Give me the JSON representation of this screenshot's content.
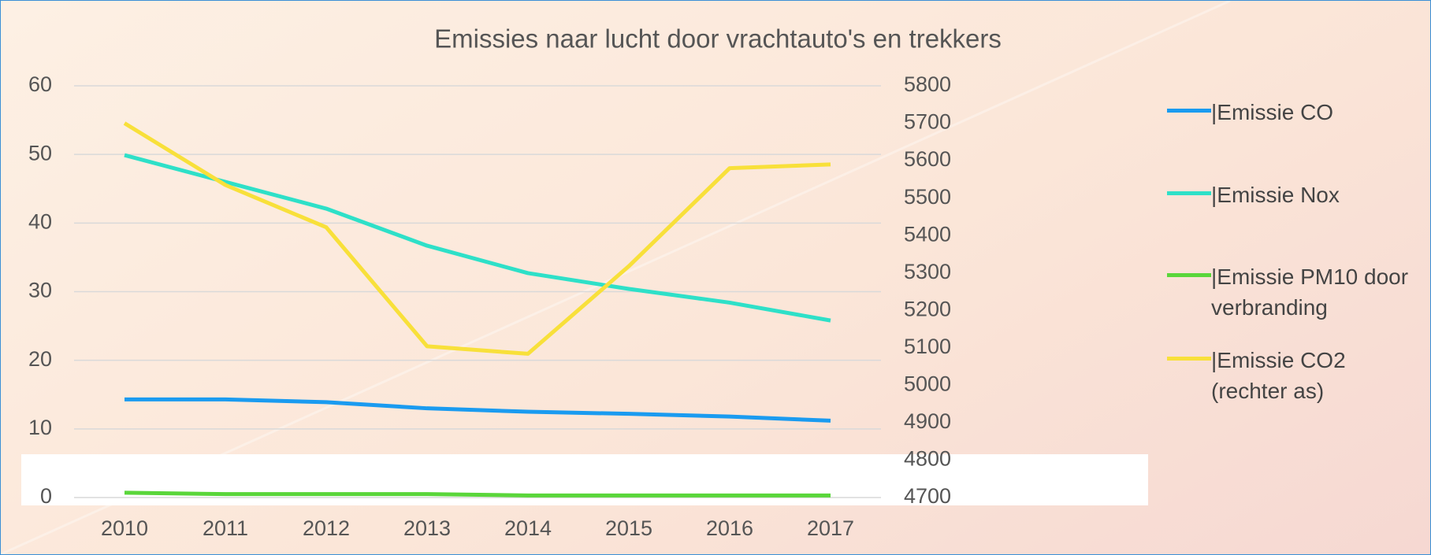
{
  "chart_data": {
    "type": "line",
    "title": "Emissies naar lucht door vrachtauto's en trekkers",
    "categories": [
      "2010",
      "2011",
      "2012",
      "2013",
      "2014",
      "2015",
      "2016",
      "2017"
    ],
    "series": [
      {
        "name": "|Emissie CO",
        "color": "#1a9bf0",
        "values": [
          14.3,
          14.3,
          13.9,
          13.0,
          12.5,
          12.2,
          11.8,
          11.2
        ]
      },
      {
        "name": "|Emissie Nox",
        "color": "#2ee0c8",
        "values": [
          49.9,
          46.0,
          42.1,
          36.7,
          32.7,
          30.4,
          28.4,
          25.8
        ]
      },
      {
        "name": "|Emissie PM10 door verbranding",
        "color": "#5ad63a",
        "values": [
          0.7,
          0.5,
          0.5,
          0.5,
          0.3,
          0.3,
          0.3,
          0.3
        ]
      },
      {
        "name": "|Emissie CO2 (rechter as)",
        "color": "#f8e03a",
        "axis": "y2",
        "values": [
          5700,
          5535,
          5422,
          5104,
          5084,
          5318,
          5580,
          5590
        ]
      }
    ],
    "ylim": [
      0,
      60
    ],
    "yticks": [
      0,
      10,
      20,
      30,
      40,
      50,
      60
    ],
    "y2lim": [
      4700,
      5800
    ],
    "y2ticks": [
      4700,
      4800,
      4900,
      5000,
      5100,
      5200,
      5300,
      5400,
      5500,
      5600,
      5700,
      5800
    ],
    "grid": true
  }
}
